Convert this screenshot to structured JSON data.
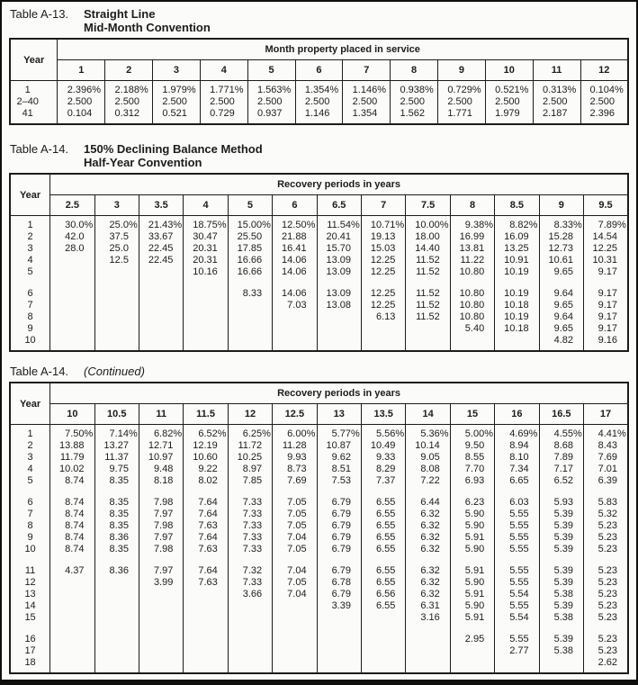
{
  "colors": {
    "text": "#1c1c1c",
    "border": "#1c1c1c",
    "page_background": "#fbfbf9",
    "page_frame": "#0f0f0f"
  },
  "tables": [
    {
      "label": "Table A-13.",
      "title_lines": [
        "Straight Line",
        "Mid-Month Convention"
      ],
      "year_label": "Year",
      "col_group_label": "Month property placed in service",
      "columns": [
        "1",
        "2",
        "3",
        "4",
        "5",
        "6",
        "7",
        "8",
        "9",
        "10",
        "11",
        "12"
      ],
      "rows": [
        {
          "year": "1",
          "values": [
            "2.396%",
            "2.188%",
            "1.979%",
            "1.771%",
            "1.563%",
            "1.354%",
            "1.146%",
            "0.938%",
            "0.729%",
            "0.521%",
            "0.313%",
            "0.104%"
          ]
        },
        {
          "year": "2–40",
          "values": [
            "2.500",
            "2.500",
            "2.500",
            "2.500",
            "2.500",
            "2.500",
            "2.500",
            "2.500",
            "2.500",
            "2.500",
            "2.500",
            "2.500"
          ]
        },
        {
          "year": "41",
          "values": [
            "0.104",
            "0.312",
            "0.521",
            "0.729",
            "0.937",
            "1.146",
            "1.354",
            "1.562",
            "1.771",
            "1.979",
            "2.187",
            "2.396"
          ]
        }
      ]
    },
    {
      "label": "Table A-14.",
      "title_lines": [
        "150% Declining Balance Method",
        "Half-Year Convention"
      ],
      "year_label": "Year",
      "col_group_label": "Recovery periods in years",
      "columns": [
        "2.5",
        "3",
        "3.5",
        "4",
        "5",
        "6",
        "6.5",
        "7",
        "7.5",
        "8",
        "8.5",
        "9",
        "9.5"
      ],
      "rows": [
        {
          "year": "1",
          "values": [
            "30.0%",
            "25.0%",
            "21.43%",
            "18.75%",
            "15.00%",
            "12.50%",
            "11.54%",
            "10.71%",
            "10.00%",
            "9.38%",
            "8.82%",
            "8.33%",
            "7.89%"
          ]
        },
        {
          "year": "2",
          "values": [
            "42.0",
            "37.5",
            "33.67",
            "30.47",
            "25.50",
            "21.88",
            "20.41",
            "19.13",
            "18.00",
            "16.99",
            "16.09",
            "15.28",
            "14.54"
          ]
        },
        {
          "year": "3",
          "values": [
            "28.0",
            "25.0",
            "22.45",
            "20.31",
            "17.85",
            "16.41",
            "15.70",
            "15.03",
            "14.40",
            "13.81",
            "13.25",
            "12.73",
            "12.25"
          ]
        },
        {
          "year": "4",
          "values": [
            "",
            "12.5",
            "22.45",
            "20.31",
            "16.66",
            "14.06",
            "13.09",
            "12.25",
            "11.52",
            "11.22",
            "10.91",
            "10.61",
            "10.31"
          ]
        },
        {
          "year": "5",
          "values": [
            "",
            "",
            "",
            "10.16",
            "16.66",
            "14.06",
            "13.09",
            "12.25",
            "11.52",
            "10.80",
            "10.19",
            "9.65",
            "9.17"
          ]
        },
        null,
        {
          "year": "6",
          "values": [
            "",
            "",
            "",
            "",
            "8.33",
            "14.06",
            "13.09",
            "12.25",
            "11.52",
            "10.80",
            "10.19",
            "9.64",
            "9.17"
          ]
        },
        {
          "year": "7",
          "values": [
            "",
            "",
            "",
            "",
            "",
            "7.03",
            "13.08",
            "12.25",
            "11.52",
            "10.80",
            "10.18",
            "9.65",
            "9.17"
          ]
        },
        {
          "year": "8",
          "values": [
            "",
            "",
            "",
            "",
            "",
            "",
            "",
            "6.13",
            "11.52",
            "10.80",
            "10.19",
            "9.64",
            "9.17"
          ]
        },
        {
          "year": "9",
          "values": [
            "",
            "",
            "",
            "",
            "",
            "",
            "",
            "",
            "",
            "5.40",
            "10.18",
            "9.65",
            "9.17"
          ]
        },
        {
          "year": "10",
          "values": [
            "",
            "",
            "",
            "",
            "",
            "",
            "",
            "",
            "",
            "",
            "",
            "4.82",
            "9.16"
          ]
        }
      ]
    },
    {
      "label": "Table A-14.",
      "title_lines": [
        "(Continued)"
      ],
      "year_label": "Year",
      "col_group_label": "Recovery periods in years",
      "columns": [
        "10",
        "10.5",
        "11",
        "11.5",
        "12",
        "12.5",
        "13",
        "13.5",
        "14",
        "15",
        "16",
        "16.5",
        "17"
      ],
      "rows": [
        {
          "year": "1",
          "values": [
            "7.50%",
            "7.14%",
            "6.82%",
            "6.52%",
            "6.25%",
            "6.00%",
            "5.77%",
            "5.56%",
            "5.36%",
            "5.00%",
            "4.69%",
            "4.55%",
            "4.41%"
          ]
        },
        {
          "year": "2",
          "values": [
            "13.88",
            "13.27",
            "12.71",
            "12.19",
            "11.72",
            "11.28",
            "10.87",
            "10.49",
            "10.14",
            "9.50",
            "8.94",
            "8.68",
            "8.43"
          ]
        },
        {
          "year": "3",
          "values": [
            "11.79",
            "11.37",
            "10.97",
            "10.60",
            "10.25",
            "9.93",
            "9.62",
            "9.33",
            "9.05",
            "8.55",
            "8.10",
            "7.89",
            "7.69"
          ]
        },
        {
          "year": "4",
          "values": [
            "10.02",
            "9.75",
            "9.48",
            "9.22",
            "8.97",
            "8.73",
            "8.51",
            "8.29",
            "8.08",
            "7.70",
            "7.34",
            "7.17",
            "7.01"
          ]
        },
        {
          "year": "5",
          "values": [
            "8.74",
            "8.35",
            "8.18",
            "8.02",
            "7.85",
            "7.69",
            "7.53",
            "7.37",
            "7.22",
            "6.93",
            "6.65",
            "6.52",
            "6.39"
          ]
        },
        null,
        {
          "year": "6",
          "values": [
            "8.74",
            "8.35",
            "7.98",
            "7.64",
            "7.33",
            "7.05",
            "6.79",
            "6.55",
            "6.44",
            "6.23",
            "6.03",
            "5.93",
            "5.83"
          ]
        },
        {
          "year": "7",
          "values": [
            "8.74",
            "8.35",
            "7.97",
            "7.64",
            "7.33",
            "7.05",
            "6.79",
            "6.55",
            "6.32",
            "5.90",
            "5.55",
            "5.39",
            "5.32"
          ]
        },
        {
          "year": "8",
          "values": [
            "8.74",
            "8.35",
            "7.98",
            "7.63",
            "7.33",
            "7.05",
            "6.79",
            "6.55",
            "6.32",
            "5.90",
            "5.55",
            "5.39",
            "5.23"
          ]
        },
        {
          "year": "9",
          "values": [
            "8.74",
            "8.36",
            "7.97",
            "7.64",
            "7.33",
            "7.04",
            "6.79",
            "6.55",
            "6.32",
            "5.91",
            "5.55",
            "5.39",
            "5.23"
          ]
        },
        {
          "year": "10",
          "values": [
            "8.74",
            "8.35",
            "7.98",
            "7.63",
            "7.33",
            "7.05",
            "6.79",
            "6.55",
            "6.32",
            "5.90",
            "5.55",
            "5.39",
            "5.23"
          ]
        },
        null,
        {
          "year": "11",
          "values": [
            "4.37",
            "8.36",
            "7.97",
            "7.64",
            "7.32",
            "7.04",
            "6.79",
            "6.55",
            "6.32",
            "5.91",
            "5.55",
            "5.39",
            "5.23"
          ]
        },
        {
          "year": "12",
          "values": [
            "",
            "",
            "3.99",
            "7.63",
            "7.33",
            "7.05",
            "6.78",
            "6.55",
            "6.32",
            "5.90",
            "5.55",
            "5.39",
            "5.23"
          ]
        },
        {
          "year": "13",
          "values": [
            "",
            "",
            "",
            "",
            "3.66",
            "7.04",
            "6.79",
            "6.56",
            "6.32",
            "5.91",
            "5.54",
            "5.38",
            "5.23"
          ]
        },
        {
          "year": "14",
          "values": [
            "",
            "",
            "",
            "",
            "",
            "",
            "3.39",
            "6.55",
            "6.31",
            "5.90",
            "5.55",
            "5.39",
            "5.23"
          ]
        },
        {
          "year": "15",
          "values": [
            "",
            "",
            "",
            "",
            "",
            "",
            "",
            "",
            "3.16",
            "5.91",
            "5.54",
            "5.38",
            "5.23"
          ]
        },
        null,
        {
          "year": "16",
          "values": [
            "",
            "",
            "",
            "",
            "",
            "",
            "",
            "",
            "",
            "2.95",
            "5.55",
            "5.39",
            "5.23"
          ]
        },
        {
          "year": "17",
          "values": [
            "",
            "",
            "",
            "",
            "",
            "",
            "",
            "",
            "",
            "",
            "2.77",
            "5.38",
            "5.23"
          ]
        },
        {
          "year": "18",
          "values": [
            "",
            "",
            "",
            "",
            "",
            "",
            "",
            "",
            "",
            "",
            "",
            "",
            "2.62"
          ]
        }
      ]
    }
  ]
}
